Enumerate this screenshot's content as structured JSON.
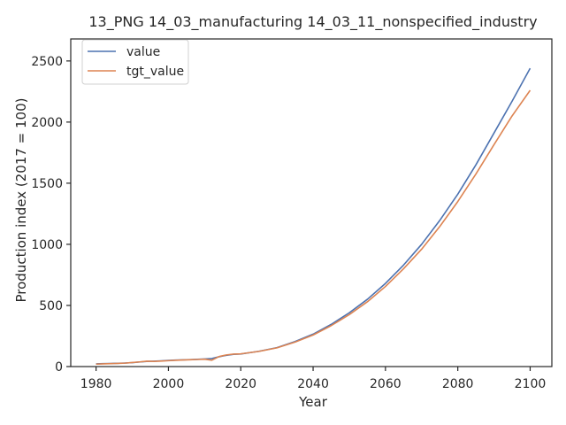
{
  "chart_data": {
    "type": "line",
    "title": "13_PNG 14_03_manufacturing 14_03_11_nonspecified_industry",
    "xlabel": "Year",
    "ylabel": "Production index (2017 = 100)",
    "xlim": [
      1973,
      2106
    ],
    "ylim": [
      0,
      2680
    ],
    "xticks": [
      1980,
      2000,
      2020,
      2040,
      2060,
      2080,
      2100
    ],
    "yticks": [
      0,
      500,
      1000,
      1500,
      2000,
      2500
    ],
    "grid": false,
    "legend_position": "top-left",
    "x": [
      1980,
      1982,
      1984,
      1986,
      1988,
      1990,
      1992,
      1994,
      1996,
      1998,
      2000,
      2002,
      2004,
      2006,
      2008,
      2010,
      2012,
      2014,
      2016,
      2018,
      2020,
      2025,
      2030,
      2035,
      2040,
      2045,
      2050,
      2055,
      2060,
      2065,
      2070,
      2075,
      2080,
      2085,
      2090,
      2095,
      2100
    ],
    "series": [
      {
        "name": "value",
        "color": "#4c72b0",
        "values": [
          22,
          24,
          25,
          27,
          29,
          32,
          37,
          42,
          44,
          47,
          50,
          53,
          55,
          57,
          59,
          62,
          66,
          80,
          92,
          100,
          103,
          125,
          155,
          205,
          265,
          345,
          440,
          550,
          680,
          830,
          1000,
          1195,
          1410,
          1650,
          1910,
          2170,
          2440
        ]
      },
      {
        "name": "tgt_value",
        "color": "#dd8452",
        "values": [
          20,
          22,
          24,
          26,
          28,
          33,
          38,
          44,
          42,
          45,
          48,
          51,
          54,
          56,
          58,
          60,
          52,
          82,
          95,
          102,
          104,
          124,
          153,
          200,
          258,
          335,
          425,
          530,
          655,
          800,
          960,
          1145,
          1350,
          1575,
          1815,
          2050,
          2260
        ]
      }
    ]
  }
}
